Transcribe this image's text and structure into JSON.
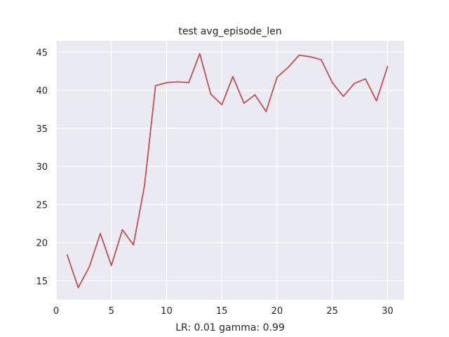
{
  "chart_data": {
    "type": "line",
    "title": "test avg_episode_len",
    "xlabel": "LR: 0.01 gamma: 0.99",
    "ylabel": "",
    "xlim": [
      0.0,
      31.5
    ],
    "ylim": [
      12.5,
      46.5
    ],
    "xticks": [
      0,
      5,
      10,
      15,
      20,
      25,
      30
    ],
    "yticks": [
      15,
      20,
      25,
      30,
      35,
      40,
      45
    ],
    "grid": true,
    "background": "#eaeaf2",
    "series": [
      {
        "color": "#c44e52",
        "x": [
          1,
          2,
          3,
          4,
          5,
          6,
          7,
          8,
          9,
          10,
          11,
          12,
          13,
          14,
          15,
          16,
          17,
          18,
          19,
          20,
          21,
          22,
          23,
          24,
          25,
          26,
          27,
          28,
          29,
          30
        ],
        "y": [
          18.4,
          14.1,
          16.8,
          21.2,
          17.0,
          21.7,
          19.7,
          27.5,
          40.6,
          41.0,
          41.1,
          41.0,
          44.8,
          39.5,
          38.1,
          41.8,
          38.3,
          39.4,
          37.2,
          41.7,
          43.0,
          44.6,
          44.4,
          44.0,
          41.0,
          39.2,
          40.9,
          41.5,
          38.6,
          43.1
        ]
      }
    ]
  }
}
